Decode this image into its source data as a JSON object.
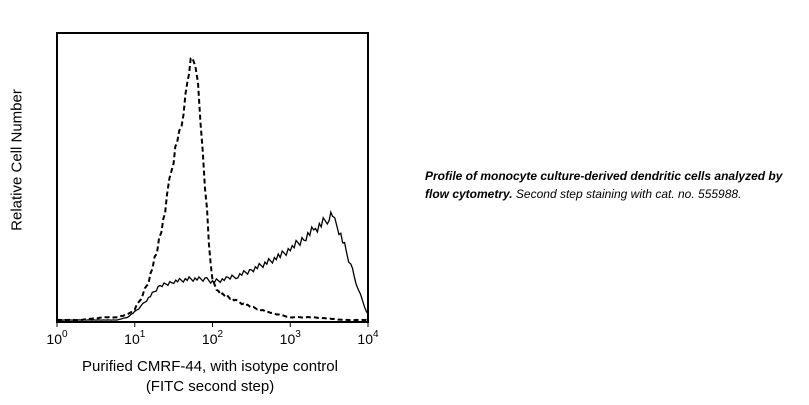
{
  "chart_data": {
    "type": "line",
    "xlabel_line1": "Purified CMRF-44, with isotype control",
    "xlabel_line2": "(FITC second step)",
    "ylabel": "Relative Cell Number",
    "x_scale": "log",
    "xlim": [
      1,
      10000
    ],
    "ylim": [
      0,
      1.0
    ],
    "grid": false,
    "x_ticks": [
      {
        "value": 1,
        "mantissa": "10",
        "exp": "0"
      },
      {
        "value": 10,
        "mantissa": "10",
        "exp": "1"
      },
      {
        "value": 100,
        "mantissa": "10",
        "exp": "2"
      },
      {
        "value": 1000,
        "mantissa": "10",
        "exp": "3"
      },
      {
        "value": 10000,
        "mantissa": "10",
        "exp": "4"
      }
    ],
    "series": [
      {
        "style": "dashed",
        "x": [
          1,
          2,
          4,
          6,
          8,
          10,
          12,
          15,
          18,
          22,
          26,
          30,
          35,
          40,
          45,
          50,
          55,
          60,
          65,
          70,
          80,
          90,
          100,
          120,
          150,
          200,
          300,
          500,
          1000,
          2000,
          5000,
          10000
        ],
        "y": [
          0.0,
          0.0,
          0.01,
          0.01,
          0.02,
          0.04,
          0.08,
          0.14,
          0.22,
          0.33,
          0.45,
          0.55,
          0.65,
          0.72,
          0.82,
          0.92,
          0.96,
          0.94,
          0.86,
          0.74,
          0.5,
          0.28,
          0.14,
          0.1,
          0.09,
          0.07,
          0.05,
          0.03,
          0.01,
          0.01,
          0.0,
          0.0
        ]
      },
      {
        "style": "solid",
        "x": [
          1,
          3,
          6,
          8,
          10,
          12,
          15,
          20,
          30,
          50,
          80,
          100,
          150,
          200,
          300,
          500,
          700,
          1000,
          1500,
          2000,
          2500,
          3000,
          3500,
          4000,
          5000,
          6000,
          7000,
          8000,
          9000,
          10000
        ],
        "y": [
          0.0,
          0.0,
          0.0,
          0.01,
          0.03,
          0.05,
          0.08,
          0.12,
          0.14,
          0.15,
          0.15,
          0.14,
          0.15,
          0.16,
          0.18,
          0.21,
          0.23,
          0.26,
          0.3,
          0.33,
          0.35,
          0.37,
          0.38,
          0.35,
          0.27,
          0.2,
          0.14,
          0.09,
          0.05,
          0.02
        ]
      }
    ]
  },
  "caption": {
    "bold": "Profile of monocyte culture-derived dendritic cells analyzed by flow cytometry.",
    "rest": " Second step staining with cat. no. 555988."
  }
}
